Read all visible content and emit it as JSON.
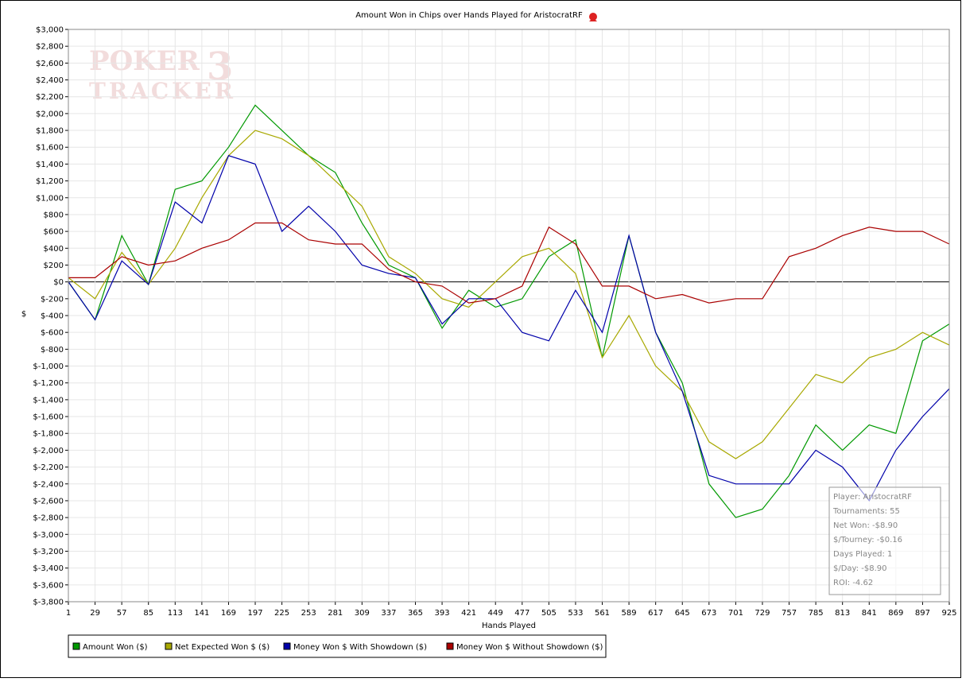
{
  "chart_data": {
    "type": "line",
    "title": "Amount Won in Chips over Hands Played for AristocratRF",
    "xlabel": "Hands Played",
    "ylabel": "$",
    "watermark": [
      "POKER",
      "3",
      "TRACKER"
    ],
    "x": [
      1,
      29,
      57,
      85,
      113,
      141,
      169,
      197,
      225,
      253,
      281,
      309,
      337,
      365,
      393,
      421,
      449,
      477,
      505,
      533,
      561,
      589,
      617,
      645,
      673,
      701,
      729,
      757,
      785,
      813,
      841,
      869,
      897,
      925
    ],
    "series": [
      {
        "name": "Amount Won ($)",
        "color": "#009900",
        "values": [
          0,
          -450,
          550,
          -30,
          1100,
          1200,
          1600,
          2100,
          1800,
          1500,
          1300,
          700,
          200,
          50,
          -550,
          -100,
          -300,
          -200,
          300,
          500,
          -900,
          550,
          -600,
          -1200,
          -2400,
          -2800,
          -2700,
          -2300,
          -1700,
          -2000,
          -1700,
          -1800,
          -700,
          -500
        ]
      },
      {
        "name": "Net Expected Won $ ($)",
        "color": "#a8a800",
        "values": [
          50,
          -200,
          350,
          -30,
          400,
          1000,
          1500,
          1800,
          1700,
          1500,
          1200,
          900,
          300,
          100,
          -200,
          -300,
          0,
          300,
          400,
          100,
          -900,
          -400,
          -1000,
          -1300,
          -1900,
          -2100,
          -1900,
          -1500,
          -1100,
          -1200,
          -900,
          -800,
          -600,
          -750
        ]
      },
      {
        "name": "Money Won $ With Showdown ($)",
        "color": "#0000aa",
        "values": [
          0,
          -450,
          250,
          -30,
          950,
          700,
          1500,
          1400,
          600,
          900,
          600,
          200,
          100,
          50,
          -500,
          -200,
          -200,
          -600,
          -700,
          -100,
          -600,
          550,
          -600,
          -1300,
          -2300,
          -2400,
          -2400,
          -2400,
          -2000,
          -2200,
          -2600,
          -2000,
          -1600,
          -1270
        ]
      },
      {
        "name": "Money Won $ Without Showdown ($)",
        "color": "#aa0000",
        "values": [
          50,
          50,
          300,
          200,
          250,
          400,
          500,
          700,
          700,
          500,
          450,
          450,
          150,
          0,
          -50,
          -250,
          -200,
          -50,
          650,
          450,
          -50,
          -50,
          -200,
          -150,
          -250,
          -200,
          -200,
          300,
          400,
          550,
          650,
          600,
          600,
          450
        ]
      }
    ],
    "xlim": [
      1,
      925
    ],
    "xticks": [
      1,
      29,
      57,
      85,
      113,
      141,
      169,
      197,
      225,
      253,
      281,
      309,
      337,
      365,
      393,
      421,
      449,
      477,
      505,
      533,
      561,
      589,
      617,
      645,
      673,
      701,
      729,
      757,
      785,
      813,
      841,
      869,
      897,
      925
    ],
    "ylim": [
      -3800,
      3000
    ],
    "yticks": [
      {
        "value": 3000,
        "label": "$3,000"
      },
      {
        "value": 2800,
        "label": "$2,800"
      },
      {
        "value": 2600,
        "label": "$2,600"
      },
      {
        "value": 2400,
        "label": "$2,400"
      },
      {
        "value": 2200,
        "label": "$2,200"
      },
      {
        "value": 2000,
        "label": "$2,000"
      },
      {
        "value": 1800,
        "label": "$1,800"
      },
      {
        "value": 1600,
        "label": "$1,600"
      },
      {
        "value": 1400,
        "label": "$1,400"
      },
      {
        "value": 1200,
        "label": "$1,200"
      },
      {
        "value": 1000,
        "label": "$1,000"
      },
      {
        "value": 800,
        "label": "$800"
      },
      {
        "value": 600,
        "label": "$600"
      },
      {
        "value": 400,
        "label": "$400"
      },
      {
        "value": 200,
        "label": "$200"
      },
      {
        "value": 0,
        "label": "$0"
      },
      {
        "value": -200,
        "label": "$-200"
      },
      {
        "value": -400,
        "label": "$-400"
      },
      {
        "value": -600,
        "label": "$-600"
      },
      {
        "value": -800,
        "label": "$-800"
      },
      {
        "value": -1000,
        "label": "$-1,000"
      },
      {
        "value": -1200,
        "label": "$-1,200"
      },
      {
        "value": -1400,
        "label": "$-1,400"
      },
      {
        "value": -1600,
        "label": "$-1,600"
      },
      {
        "value": -1800,
        "label": "$-1,800"
      },
      {
        "value": -2000,
        "label": "$-2,000"
      },
      {
        "value": -2200,
        "label": "$-2,200"
      },
      {
        "value": -2400,
        "label": "$-2,400"
      },
      {
        "value": -2600,
        "label": "$-2,600"
      },
      {
        "value": -2800,
        "label": "$-2,800"
      },
      {
        "value": -3000,
        "label": "$-3,000"
      },
      {
        "value": -3200,
        "label": "$-3,200"
      },
      {
        "value": -3400,
        "label": "$-3,400"
      },
      {
        "value": -3600,
        "label": "$-3,600"
      },
      {
        "value": -3800,
        "label": "$-3,800"
      }
    ],
    "grid": true,
    "legend": "bottom-left",
    "info_box": [
      "Player: AristocratRF",
      "Tournaments: 55",
      "Net Won: -$8.90",
      "$/Tourney: -$0.16",
      "Days Played: 1",
      "$/Day: -$8.90",
      "ROI: -4.62"
    ]
  }
}
